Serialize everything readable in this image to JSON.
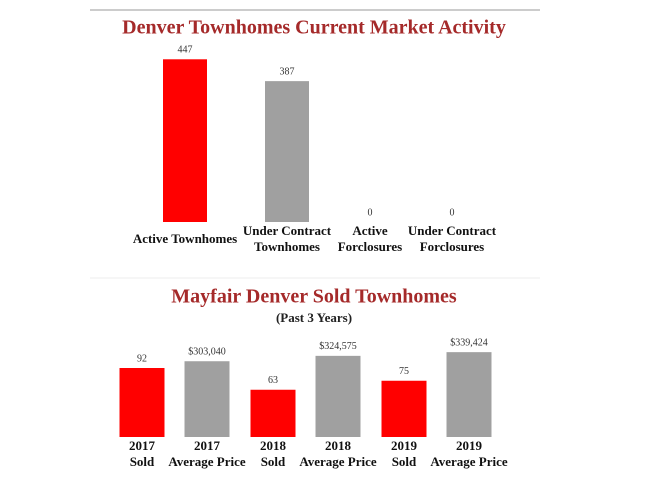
{
  "chart_data": [
    {
      "type": "bar",
      "title": "Denver Townhomes Current Market Activity",
      "categories": [
        [
          "Active Townhomes"
        ],
        [
          "Under Contract",
          "Townhomes"
        ],
        [
          "Active",
          "Forclosures"
        ],
        [
          "Under Contract",
          "Forclosures"
        ]
      ],
      "values": [
        447,
        387,
        0,
        0
      ],
      "colors": [
        "#ff0000",
        "#a0a0a0",
        "#ff0000",
        "#a0a0a0"
      ],
      "ylim": [
        0,
        500
      ]
    },
    {
      "type": "bar",
      "title": "Mayfair Denver Sold Townhomes",
      "subtitle": "(Past 3 Years)",
      "categories": [
        [
          "2017",
          "Sold"
        ],
        [
          "2017",
          "Average Price"
        ],
        [
          "2018",
          "Sold"
        ],
        [
          "2018",
          "Average Price"
        ],
        [
          "2019",
          "Sold"
        ],
        [
          "2019",
          "Average Price"
        ]
      ],
      "values": [
        92,
        303040,
        63,
        324575,
        75,
        339424
      ],
      "value_labels": [
        "92",
        "$303,040",
        "63",
        "$324,575",
        "75",
        "$339,424"
      ],
      "axes": [
        "y",
        "y2",
        "y",
        "y2",
        "y",
        "y2"
      ],
      "colors": [
        "#ff0000",
        "#a0a0a0",
        "#ff0000",
        "#a0a0a0",
        "#ff0000",
        "#a0a0a0"
      ],
      "ylim": [
        0,
        120
      ],
      "y2lim": [
        0,
        360000
      ]
    }
  ]
}
